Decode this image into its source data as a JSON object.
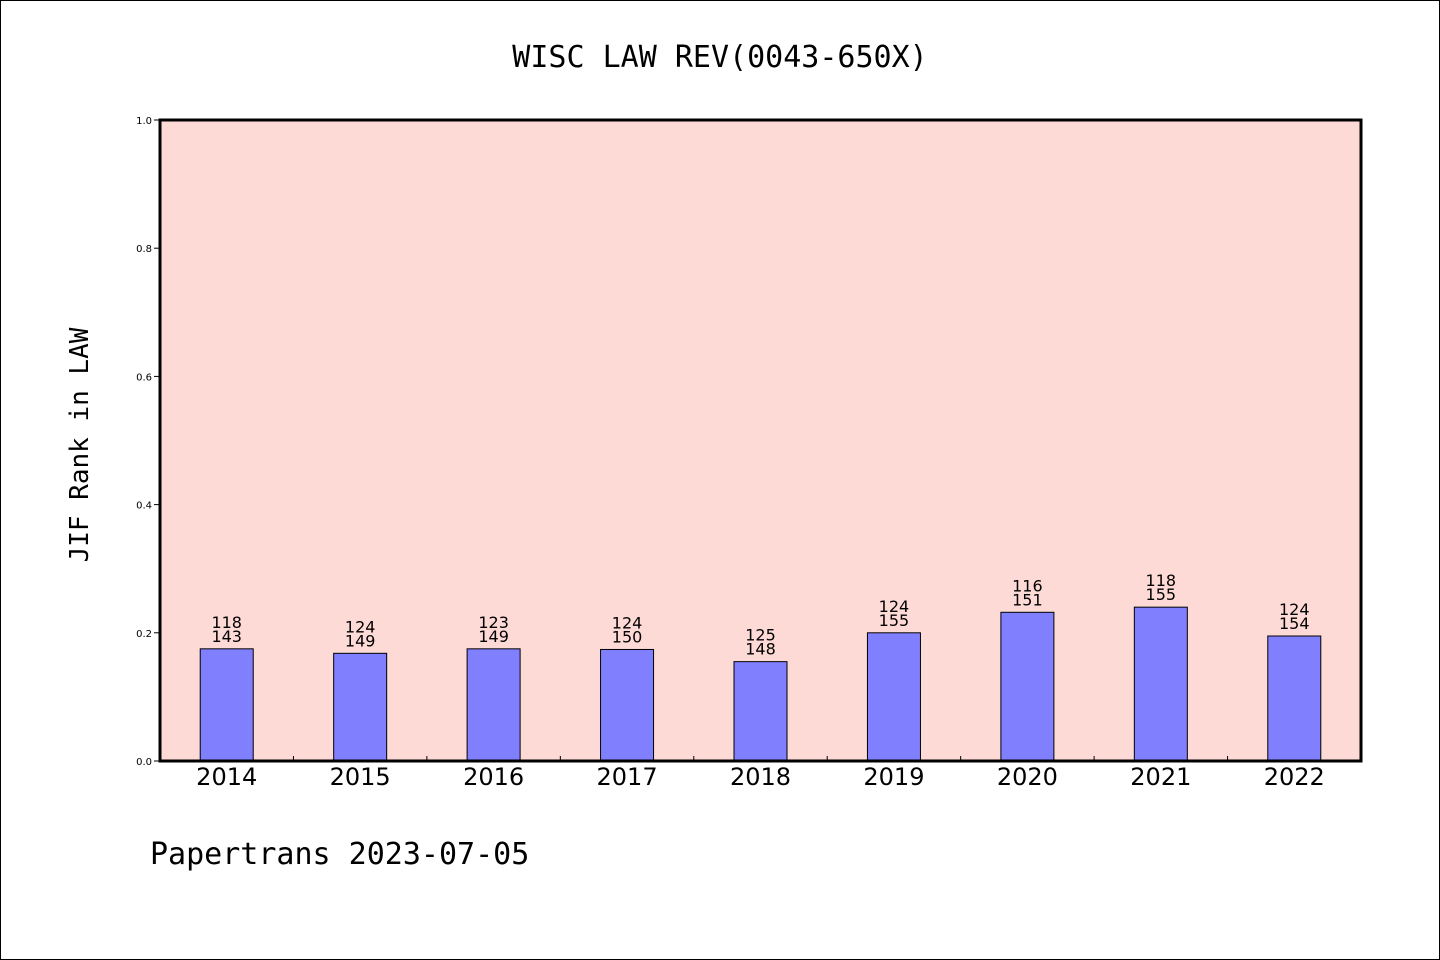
{
  "chart_data": {
    "type": "bar",
    "title": "WISC LAW REV(0043-650X)",
    "ylabel": "JIF Rank in LAW",
    "xlabel": "",
    "ylim": [
      0,
      1.0
    ],
    "yticks": [
      "0.0",
      "0.2",
      "0.4",
      "0.6",
      "0.8",
      "1.0"
    ],
    "categories": [
      "2014",
      "2015",
      "2016",
      "2017",
      "2018",
      "2019",
      "2020",
      "2021",
      "2022"
    ],
    "values": [
      0.175,
      0.168,
      0.175,
      0.174,
      0.155,
      0.2,
      0.232,
      0.24,
      0.195
    ],
    "rank_labels": [
      "118",
      "124",
      "123",
      "124",
      "125",
      "124",
      "116",
      "118",
      "124"
    ],
    "total_labels": [
      "143",
      "149",
      "149",
      "150",
      "148",
      "155",
      "151",
      "155",
      "154"
    ],
    "grid": false,
    "colors": {
      "plot_background": "#fddad6",
      "bar_fill": "#8080ff",
      "bar_stroke": "#000000"
    }
  },
  "footer": {
    "text": "Papertrans 2023-07-05"
  }
}
